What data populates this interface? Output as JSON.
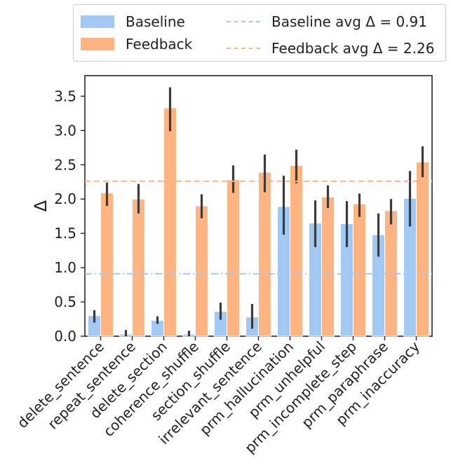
{
  "chart_data": {
    "type": "bar",
    "ylabel": "Δ",
    "xlabel": "",
    "ylim": [
      0,
      3.8
    ],
    "yticks": [
      "0.0",
      "0.5",
      "1.0",
      "1.5",
      "2.0",
      "2.5",
      "3.0",
      "3.5"
    ],
    "ytick_values": [
      0,
      0.5,
      1.0,
      1.5,
      2.0,
      2.5,
      3.0,
      3.5
    ],
    "categories": [
      "delete_sentence",
      "repeat_sentence",
      "delete_section",
      "coherence_shuffle",
      "section_shuffle",
      "irrelevant_sentence",
      "prm_hallucination",
      "prm_unhelpful",
      "prm_incomplete_step",
      "prm_paraphrase",
      "prm_inaccuracy"
    ],
    "series": [
      {
        "name": "Baseline",
        "color": "#a1c9f4",
        "values": [
          0.3,
          0.03,
          0.23,
          0.03,
          0.36,
          0.28,
          1.89,
          1.65,
          1.64,
          1.48,
          2.01
        ],
        "err_low": [
          0.2,
          0.0,
          0.18,
          0.0,
          0.24,
          0.11,
          1.48,
          1.3,
          1.3,
          1.16,
          1.6
        ],
        "err_high": [
          0.38,
          0.09,
          0.29,
          0.08,
          0.49,
          0.47,
          2.34,
          1.98,
          1.97,
          1.79,
          2.41
        ]
      },
      {
        "name": "Feedback",
        "color": "#ffb482",
        "values": [
          2.09,
          2.0,
          3.33,
          1.9,
          2.28,
          2.39,
          2.49,
          2.03,
          1.93,
          1.83,
          2.54
        ],
        "err_low": [
          1.9,
          1.79,
          2.99,
          1.72,
          2.09,
          2.1,
          2.23,
          1.87,
          1.74,
          1.63,
          2.32
        ],
        "err_high": [
          2.24,
          2.22,
          3.63,
          2.07,
          2.49,
          2.65,
          2.72,
          2.2,
          2.08,
          2.0,
          2.77
        ]
      }
    ],
    "reference_lines": [
      {
        "name": "Baseline avg Δ = 0.91",
        "value": 0.91,
        "style": "dashdot",
        "color": "#a1c9f4"
      },
      {
        "name": "Feedback avg Δ = 2.26",
        "value": 2.26,
        "style": "dashed",
        "color": "#ffb482"
      }
    ],
    "legend": {
      "placement": "top",
      "entries": [
        "Baseline",
        "Feedback",
        "Baseline avg Δ = 0.91",
        "Feedback avg Δ = 2.26"
      ]
    }
  }
}
